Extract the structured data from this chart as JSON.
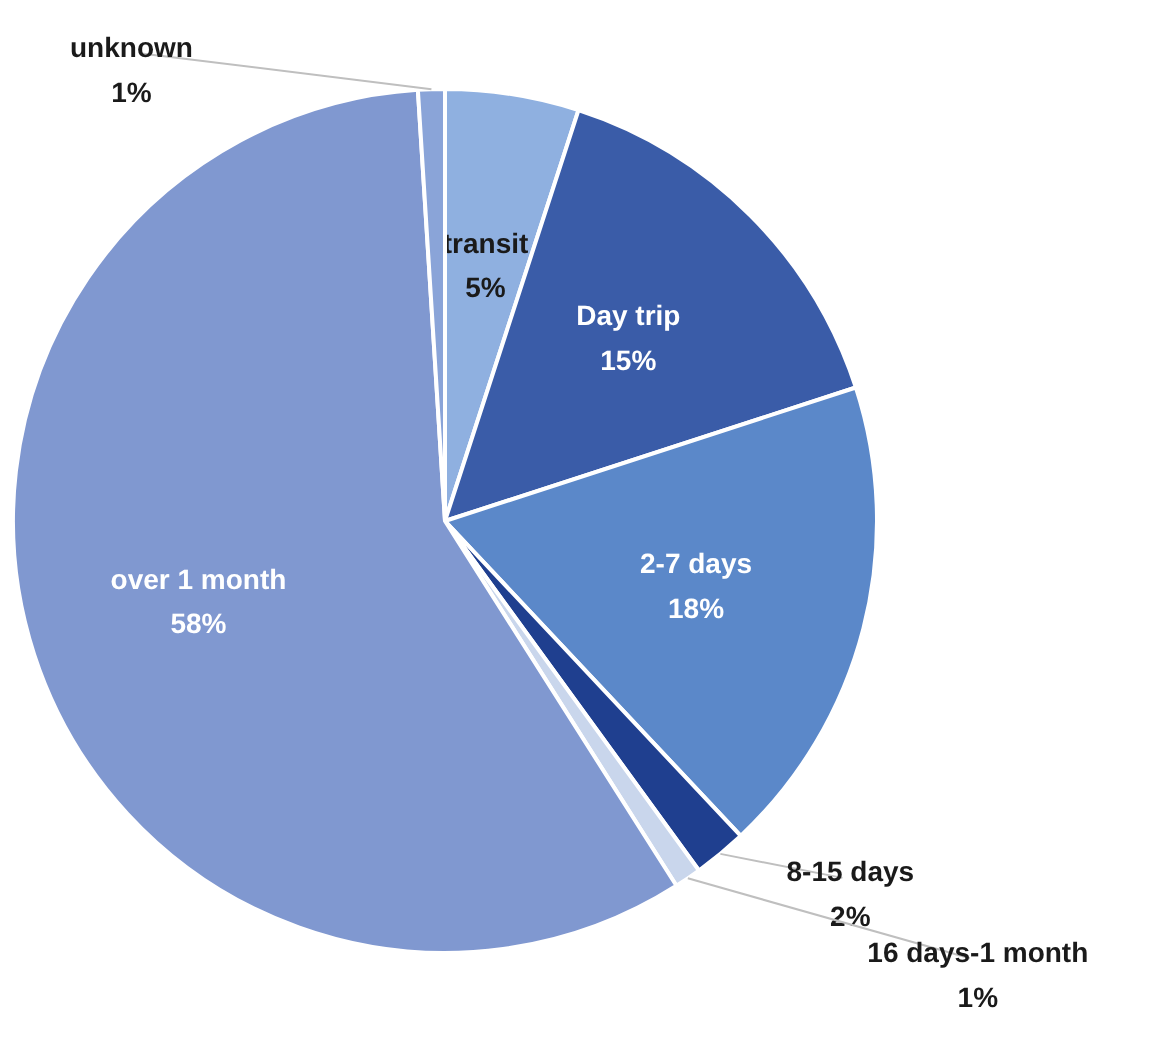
{
  "chart_data": {
    "type": "pie",
    "categories": [
      "transit",
      "Day trip",
      "2-7 days",
      "8-15 days",
      "16 days-1 month",
      "over 1 month",
      "unknown"
    ],
    "values": [
      5,
      15,
      18,
      2,
      1,
      58,
      1
    ],
    "colors": [
      "#8fb0e0",
      "#3a5ca8",
      "#5b88c9",
      "#1f3f8f",
      "#c9d6ec",
      "#8098d0",
      "#8aa4d8"
    ],
    "value_labels": [
      "5%",
      "15%",
      "18%",
      "2%",
      "1%",
      "58%",
      "1%"
    ]
  }
}
